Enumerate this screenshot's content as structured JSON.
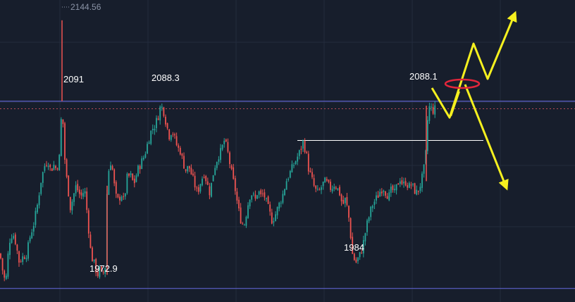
{
  "chart_data": {
    "type": "candlestick",
    "title": "",
    "xlabel": "",
    "ylabel": "",
    "ylim": [
      1958,
      2158
    ],
    "grid": true,
    "colors": {
      "background": "#171e2c",
      "grid": "#232c3d",
      "up": "#26a69a",
      "down": "#ef5350",
      "level_line": "#5b5fc7",
      "dashed_level": "#b94a55",
      "neckline": "#ffffff",
      "projection": "#f5f01f",
      "ellipse": "#e3263b"
    },
    "levels": {
      "resistance": 2091,
      "support": 1967,
      "dashed": 2086,
      "neckline": 2065
    },
    "annotations": [
      {
        "id": "high",
        "text": "2144.56",
        "price": 2144.56
      },
      {
        "id": "peak-1",
        "text": "2091",
        "price": 2091
      },
      {
        "id": "peak-2",
        "text": "2088.3",
        "price": 2088.3
      },
      {
        "id": "peak-3",
        "text": "2088.1",
        "price": 2088.1
      },
      {
        "id": "low-1",
        "text": "1972.9",
        "price": 1972.9
      },
      {
        "id": "low-2",
        "text": "1984",
        "price": 1984
      }
    ],
    "price_path": [
      [
        0,
        1990
      ],
      [
        4,
        1978
      ],
      [
        8,
        1970
      ],
      [
        13,
        1998
      ],
      [
        18,
        2004
      ],
      [
        22,
        1998
      ],
      [
        27,
        1985
      ],
      [
        33,
        1988
      ],
      [
        38,
        1990
      ],
      [
        43,
        2002
      ],
      [
        48,
        2010
      ],
      [
        53,
        2022
      ],
      [
        58,
        2038
      ],
      [
        63,
        2048
      ],
      [
        68,
        2052
      ],
      [
        72,
        2045
      ],
      [
        76,
        2049
      ],
      [
        80,
        2046
      ],
      [
        84,
        2052
      ],
      [
        86,
        2070
      ],
      [
        88,
        2091
      ],
      [
        89,
        2080
      ],
      [
        91,
        2060
      ],
      [
        93,
        2045
      ],
      [
        96,
        2035
      ],
      [
        100,
        2020
      ],
      [
        104,
        2028
      ],
      [
        108,
        2035
      ],
      [
        112,
        2030
      ],
      [
        116,
        2028
      ],
      [
        120,
        2033
      ],
      [
        123,
        2020
      ],
      [
        126,
        2005
      ],
      [
        129,
        1990
      ],
      [
        132,
        1985
      ],
      [
        135,
        1982
      ],
      [
        138,
        1975
      ],
      [
        141,
        1980
      ],
      [
        144,
        1976
      ],
      [
        147,
        1978
      ],
      [
        150,
        1983
      ],
      [
        152,
        2035
      ],
      [
        155,
        2048
      ],
      [
        158,
        2052
      ],
      [
        161,
        2040
      ],
      [
        164,
        2028
      ],
      [
        168,
        2025
      ],
      [
        172,
        2030
      ],
      [
        176,
        2024
      ],
      [
        180,
        2040
      ],
      [
        185,
        2042
      ],
      [
        190,
        2036
      ],
      [
        195,
        2045
      ],
      [
        200,
        2050
      ],
      [
        205,
        2055
      ],
      [
        210,
        2064
      ],
      [
        215,
        2072
      ],
      [
        220,
        2075
      ],
      [
        225,
        2082
      ],
      [
        228,
        2088.3
      ],
      [
        232,
        2085
      ],
      [
        236,
        2076
      ],
      [
        240,
        2068
      ],
      [
        244,
        2072
      ],
      [
        248,
        2066
      ],
      [
        252,
        2060
      ],
      [
        256,
        2058
      ],
      [
        260,
        2050
      ],
      [
        264,
        2045
      ],
      [
        268,
        2048
      ],
      [
        272,
        2042
      ],
      [
        276,
        2036
      ],
      [
        280,
        2030
      ],
      [
        285,
        2038
      ],
      [
        290,
        2044
      ],
      [
        294,
        2036
      ],
      [
        298,
        2030
      ],
      [
        302,
        2042
      ],
      [
        306,
        2050
      ],
      [
        310,
        2055
      ],
      [
        314,
        2058
      ],
      [
        318,
        2065
      ],
      [
        322,
        2060
      ],
      [
        326,
        2050
      ],
      [
        330,
        2040
      ],
      [
        334,
        2032
      ],
      [
        338,
        2020
      ],
      [
        342,
        2012
      ],
      [
        346,
        2008
      ],
      [
        350,
        2018
      ],
      [
        354,
        2028
      ],
      [
        358,
        2030
      ],
      [
        362,
        2025
      ],
      [
        366,
        2032
      ],
      [
        370,
        2028
      ],
      [
        374,
        2030
      ],
      [
        378,
        2024
      ],
      [
        382,
        2018
      ],
      [
        386,
        2012
      ],
      [
        390,
        2015
      ],
      [
        394,
        2020
      ],
      [
        398,
        2025
      ],
      [
        402,
        2030
      ],
      [
        406,
        2038
      ],
      [
        410,
        2042
      ],
      [
        414,
        2046
      ],
      [
        418,
        2050
      ],
      [
        422,
        2054
      ],
      [
        426,
        2058
      ],
      [
        430,
        2064
      ],
      [
        434,
        2058
      ],
      [
        438,
        2046
      ],
      [
        442,
        2040
      ],
      [
        446,
        2034
      ],
      [
        450,
        2030
      ],
      [
        454,
        2032
      ],
      [
        458,
        2036
      ],
      [
        462,
        2038
      ],
      [
        466,
        2035
      ],
      [
        470,
        2033
      ],
      [
        474,
        2036
      ],
      [
        478,
        2034
      ],
      [
        482,
        2030
      ],
      [
        486,
        2022
      ],
      [
        490,
        2026
      ],
      [
        494,
        2018
      ],
      [
        497,
        2005
      ],
      [
        500,
        1990
      ],
      [
        503,
        1986
      ],
      [
        506,
        1984
      ],
      [
        509,
        1988
      ],
      [
        512,
        1990
      ],
      [
        516,
        1998
      ],
      [
        520,
        2008
      ],
      [
        524,
        2015
      ],
      [
        528,
        2022
      ],
      [
        532,
        2025
      ],
      [
        536,
        2028
      ],
      [
        540,
        2032
      ],
      [
        544,
        2034
      ],
      [
        548,
        2030
      ],
      [
        552,
        2028
      ],
      [
        556,
        2033
      ],
      [
        560,
        2030
      ],
      [
        564,
        2036
      ],
      [
        568,
        2040
      ],
      [
        572,
        2035
      ],
      [
        576,
        2038
      ],
      [
        580,
        2034
      ],
      [
        584,
        2036
      ],
      [
        588,
        2032
      ],
      [
        592,
        2030
      ],
      [
        596,
        2035
      ],
      [
        600,
        2042
      ],
      [
        603,
        2050
      ],
      [
        605,
        2060
      ],
      [
        606,
        2072
      ],
      [
        607,
        2080
      ],
      [
        608,
        2084
      ],
      [
        610,
        2088.1
      ],
      [
        612,
        2086
      ],
      [
        614,
        2084
      ],
      [
        616,
        2087
      ],
      [
        618,
        2085
      ]
    ]
  }
}
